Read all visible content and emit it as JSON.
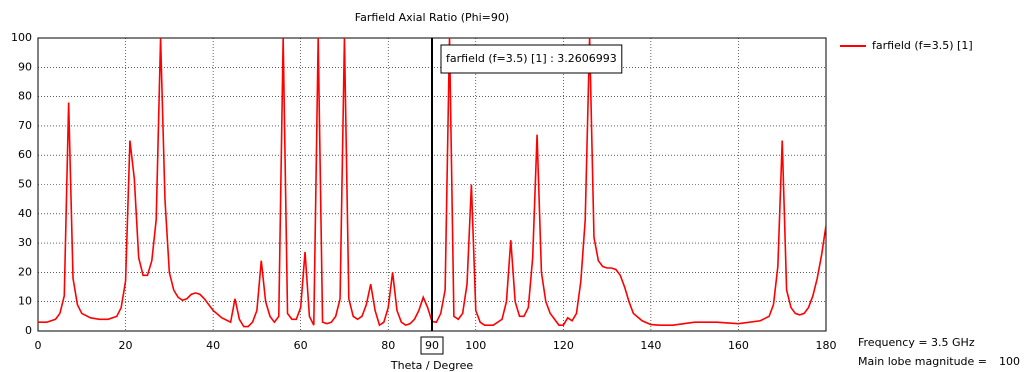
{
  "chart_data": {
    "type": "line",
    "title": "Farfield  Axial Ratio (Phi=90)",
    "x_label": "Theta / Degree",
    "xlim": [
      0,
      180
    ],
    "ylim": [
      0,
      100
    ],
    "xticks": [
      0,
      20,
      40,
      60,
      80,
      100,
      120,
      140,
      160,
      180
    ],
    "yticks": [
      0,
      10,
      20,
      30,
      40,
      50,
      60,
      70,
      80,
      90,
      100
    ],
    "grid": true,
    "legend": "top-right",
    "x": [
      0,
      2,
      4,
      5,
      6,
      7,
      8,
      9,
      10,
      12,
      14,
      16,
      18,
      19,
      20,
      21,
      22,
      23,
      24,
      25,
      26,
      27,
      28,
      29,
      30,
      31,
      32,
      33,
      34,
      35,
      36,
      37,
      38,
      39,
      40,
      42,
      44,
      45,
      46,
      47,
      48,
      49,
      50,
      51,
      52,
      53,
      54,
      55,
      56,
      57,
      58,
      59,
      60,
      61,
      62,
      63,
      64,
      65,
      66,
      67,
      68,
      69,
      70,
      71,
      72,
      73,
      74,
      75,
      76,
      77,
      78,
      79,
      80,
      81,
      82,
      83,
      84,
      85,
      86,
      87,
      88,
      89,
      90,
      91,
      92,
      93,
      94,
      95,
      96,
      97,
      98,
      99,
      100,
      101,
      102,
      104,
      106,
      107,
      108,
      109,
      110,
      111,
      112,
      113,
      114,
      115,
      116,
      117,
      118,
      119,
      120,
      121,
      122,
      123,
      124,
      125,
      126,
      127,
      128,
      129,
      130,
      131,
      132,
      133,
      134,
      135,
      136,
      138,
      140,
      142,
      145,
      150,
      155,
      160,
      165,
      167,
      168,
      169,
      170,
      171,
      172,
      173,
      174,
      175,
      176,
      177,
      178,
      179,
      180
    ],
    "series": [
      {
        "name": "farfield (f=3.5) [1]",
        "color": "#ff0000",
        "values": [
          3,
          3,
          4,
          6,
          12,
          78,
          18,
          9,
          6,
          4.5,
          4,
          4,
          5,
          8,
          17,
          65,
          52,
          25,
          19,
          19,
          24,
          38,
          100,
          45,
          20,
          14,
          11.5,
          10.5,
          11,
          12.5,
          13,
          12.5,
          11,
          9,
          7,
          4.5,
          3,
          11,
          4,
          1.5,
          1.5,
          3,
          7,
          24,
          10,
          5,
          3,
          5,
          100,
          6,
          4,
          4,
          8,
          27,
          5,
          2,
          100,
          3,
          2.5,
          3,
          5,
          11,
          100,
          11,
          5,
          4,
          5,
          9,
          16,
          7,
          2,
          3,
          8,
          20,
          7,
          3,
          2,
          2.5,
          4,
          7,
          11.5,
          8,
          3.2606993,
          3,
          6,
          14,
          100,
          5,
          4,
          6,
          16,
          50,
          7,
          3,
          2,
          2,
          4,
          10,
          31,
          10,
          5,
          5,
          8,
          25,
          67,
          20,
          10,
          6,
          4,
          2,
          2,
          4.5,
          3.5,
          6,
          17,
          38,
          100,
          32,
          24,
          22,
          21.5,
          21.5,
          21,
          19,
          15,
          10,
          6,
          3.5,
          2.2,
          2,
          2,
          3,
          3,
          2.5,
          3.5,
          5,
          9,
          22,
          65,
          14,
          8,
          6,
          5.5,
          6,
          8,
          12,
          18,
          26,
          36
        ]
      }
    ],
    "marker": {
      "x": 90,
      "label": "farfield (f=3.5) [1] : 3.2606993"
    },
    "info": {
      "frequency": "Frequency = 3.5 GHz",
      "main_lobe_label": "Main lobe magnitude =",
      "main_lobe_value": "100"
    }
  }
}
